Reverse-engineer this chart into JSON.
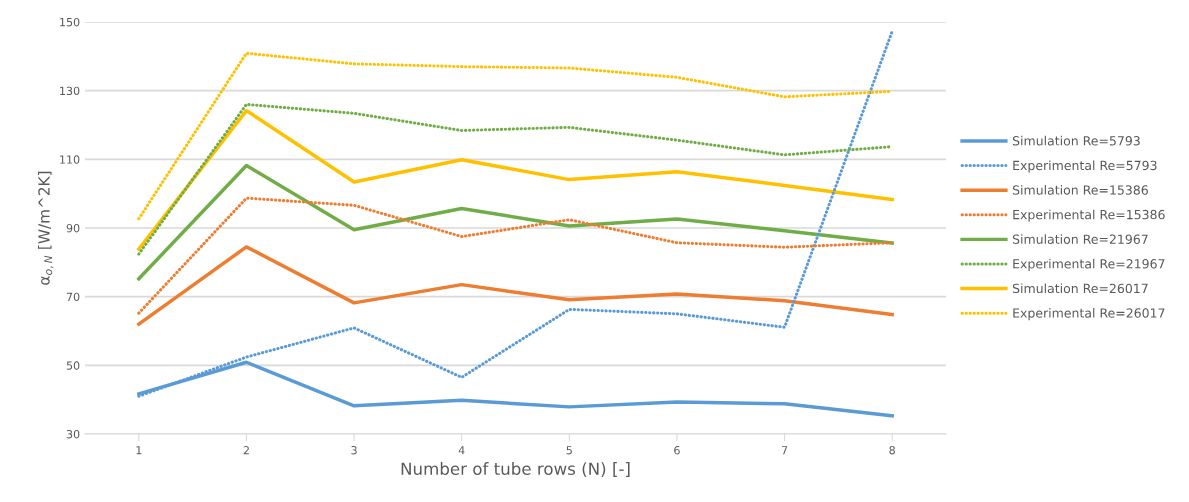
{
  "chart_data": {
    "type": "line",
    "xlabel": "Number of tube rows (N) [-]",
    "ylabel": "α$_{o,N}$ [W/m^2K]",
    "categories": [
      "1",
      "2",
      "3",
      "4",
      "5",
      "6",
      "7",
      "8"
    ],
    "ylim": [
      30,
      150
    ],
    "yticks": [
      30,
      50,
      70,
      90,
      110,
      130,
      150
    ],
    "grid": "y",
    "legend": "right",
    "marker": "none",
    "series": [
      {
        "name": "Simulation Re=5793",
        "color": "#5b9bd5",
        "line_style": "solid",
        "values": [
          41.7,
          50.9,
          38.2,
          39.8,
          37.9,
          39.3,
          38.8,
          35.3
        ]
      },
      {
        "name": "Experimental Re=5793",
        "color": "#5b9bd5",
        "line_style": "dotted",
        "values": [
          41.0,
          52.4,
          60.9,
          46.5,
          66.3,
          65.0,
          61.1,
          147.3
        ]
      },
      {
        "name": "Simulation Re=15386",
        "color": "#ed7d31",
        "line_style": "solid",
        "values": [
          62.0,
          84.5,
          68.2,
          73.5,
          69.1,
          70.8,
          68.8,
          64.8
        ]
      },
      {
        "name": "Experimental Re=15386",
        "color": "#ed7d31",
        "line_style": "dotted",
        "values": [
          65.2,
          98.7,
          96.6,
          87.5,
          92.4,
          85.7,
          84.4,
          85.7
        ]
      },
      {
        "name": "Simulation Re=21967",
        "color": "#70ad47",
        "line_style": "solid",
        "values": [
          75.2,
          108.2,
          89.5,
          95.7,
          90.6,
          92.6,
          89.2,
          85.6
        ]
      },
      {
        "name": "Experimental Re=21967",
        "color": "#70ad47",
        "line_style": "dotted",
        "values": [
          82.4,
          126.0,
          123.4,
          118.4,
          119.3,
          115.6,
          111.3,
          113.7
        ]
      },
      {
        "name": "Simulation Re=26017",
        "color": "#ffc000",
        "line_style": "solid",
        "values": [
          83.9,
          124.2,
          103.4,
          109.9,
          104.1,
          106.4,
          102.4,
          98.3
        ]
      },
      {
        "name": "Experimental Re=26017",
        "color": "#ffc000",
        "line_style": "dotted",
        "values": [
          92.7,
          140.9,
          137.8,
          137.0,
          136.6,
          133.9,
          128.2,
          129.8
        ]
      }
    ]
  }
}
